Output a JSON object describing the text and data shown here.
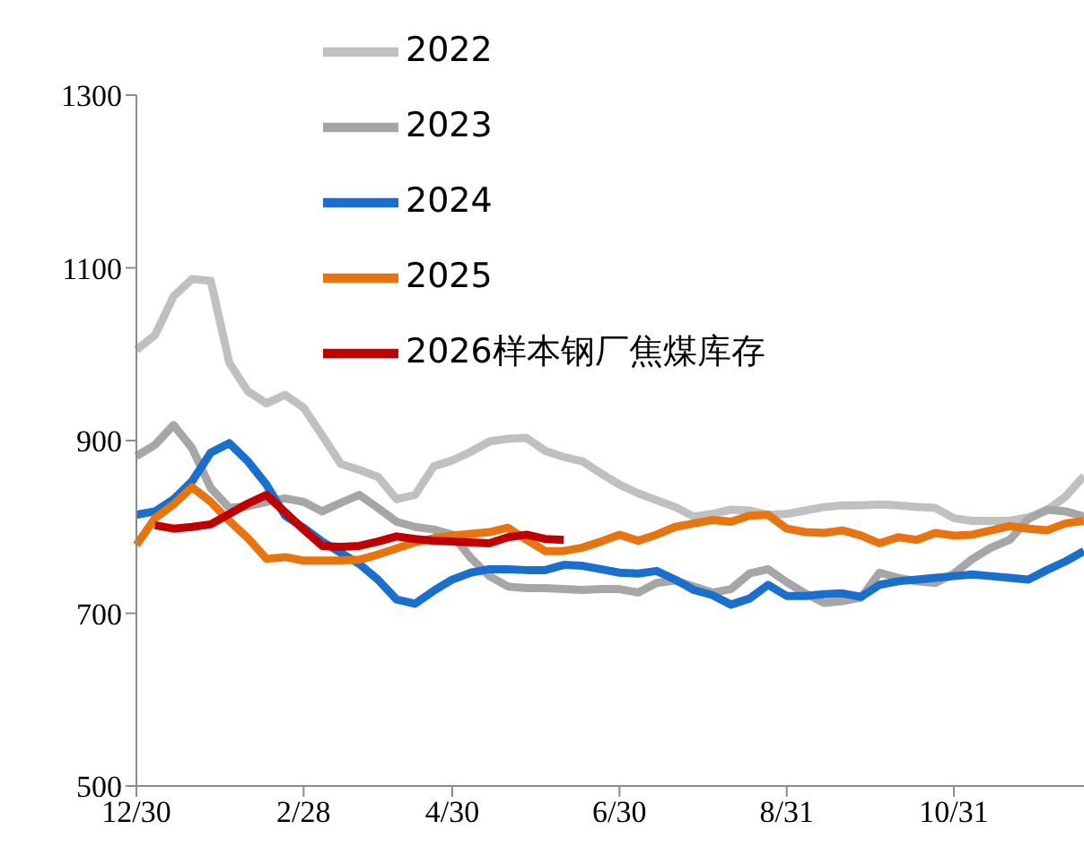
{
  "chart_data": {
    "type": "line",
    "legend": "top",
    "categories": [
      "12/30",
      null,
      null,
      null,
      null,
      null,
      null,
      null,
      null,
      "2/28",
      null,
      null,
      null,
      null,
      null,
      null,
      null,
      "4/30",
      null,
      null,
      null,
      null,
      null,
      null,
      null,
      null,
      "6/30",
      null,
      null,
      null,
      null,
      null,
      null,
      null,
      null,
      "8/31",
      null,
      null,
      null,
      null,
      null,
      null,
      null,
      null,
      "10/31",
      null,
      null,
      null,
      null,
      null,
      null,
      null
    ],
    "ylim": [
      500,
      1300
    ],
    "yticks": [
      500,
      700,
      900,
      1100,
      1300
    ],
    "series": [
      {
        "name": "2022",
        "color": "#c0c0c0",
        "values": [
          1005,
          1022,
          1067,
          1087,
          1085,
          990,
          957,
          943,
          953,
          938,
          906,
          873,
          866,
          858,
          832,
          837,
          870,
          877,
          887,
          899,
          902,
          903,
          888,
          881,
          876,
          862,
          849,
          839,
          831,
          823,
          812,
          815,
          820,
          819,
          814,
          815,
          819,
          823,
          825,
          825,
          826,
          825,
          823,
          822,
          810,
          807,
          807,
          807,
          811,
          819,
          835,
          859
        ]
      },
      {
        "name": "2023",
        "color": "#a6a6a6",
        "values": [
          882,
          895,
          918,
          891,
          845,
          822,
          824,
          829,
          833,
          829,
          818,
          828,
          837,
          822,
          806,
          800,
          797,
          791,
          764,
          743,
          731,
          729,
          729,
          728,
          727,
          728,
          728,
          724,
          735,
          738,
          731,
          724,
          728,
          746,
          751,
          736,
          723,
          712,
          714,
          718,
          747,
          741,
          737,
          735,
          746,
          763,
          776,
          785,
          809,
          820,
          818,
          812
        ]
      },
      {
        "name": "2024",
        "color": "#1a6fcc",
        "values": [
          814,
          818,
          832,
          853,
          886,
          897,
          876,
          849,
          813,
          799,
          783,
          770,
          757,
          739,
          716,
          711,
          726,
          739,
          747,
          751,
          751,
          750,
          750,
          756,
          755,
          751,
          747,
          746,
          749,
          739,
          727,
          721,
          710,
          717,
          733,
          720,
          720,
          722,
          723,
          719,
          733,
          737,
          739,
          741,
          743,
          745,
          743,
          741,
          739,
          750,
          760,
          772
        ]
      },
      {
        "name": "2025",
        "color": "#e8740f",
        "values": [
          779,
          810,
          826,
          846,
          829,
          807,
          787,
          763,
          765,
          761,
          761,
          761,
          762,
          768,
          775,
          782,
          787,
          790,
          792,
          794,
          799,
          785,
          772,
          772,
          776,
          783,
          791,
          784,
          791,
          800,
          804,
          808,
          806,
          813,
          814,
          798,
          794,
          793,
          796,
          790,
          781,
          788,
          785,
          793,
          790,
          791,
          796,
          801,
          798,
          796,
          804,
          807
        ]
      },
      {
        "name": "2026样本钢厂焦煤库存",
        "color": "#c00000",
        "values": [
          null,
          802,
          798,
          800,
          803,
          815,
          827,
          837,
          817,
          797,
          778,
          777,
          778,
          783,
          789,
          786,
          784,
          783,
          782,
          781,
          788,
          791,
          786,
          785,
          null,
          null,
          null,
          null,
          null,
          null,
          null,
          null,
          null,
          null,
          null,
          null,
          null,
          null,
          null,
          null,
          null,
          null,
          null,
          null,
          null,
          null,
          null,
          null,
          null,
          null,
          null,
          null
        ]
      }
    ]
  }
}
